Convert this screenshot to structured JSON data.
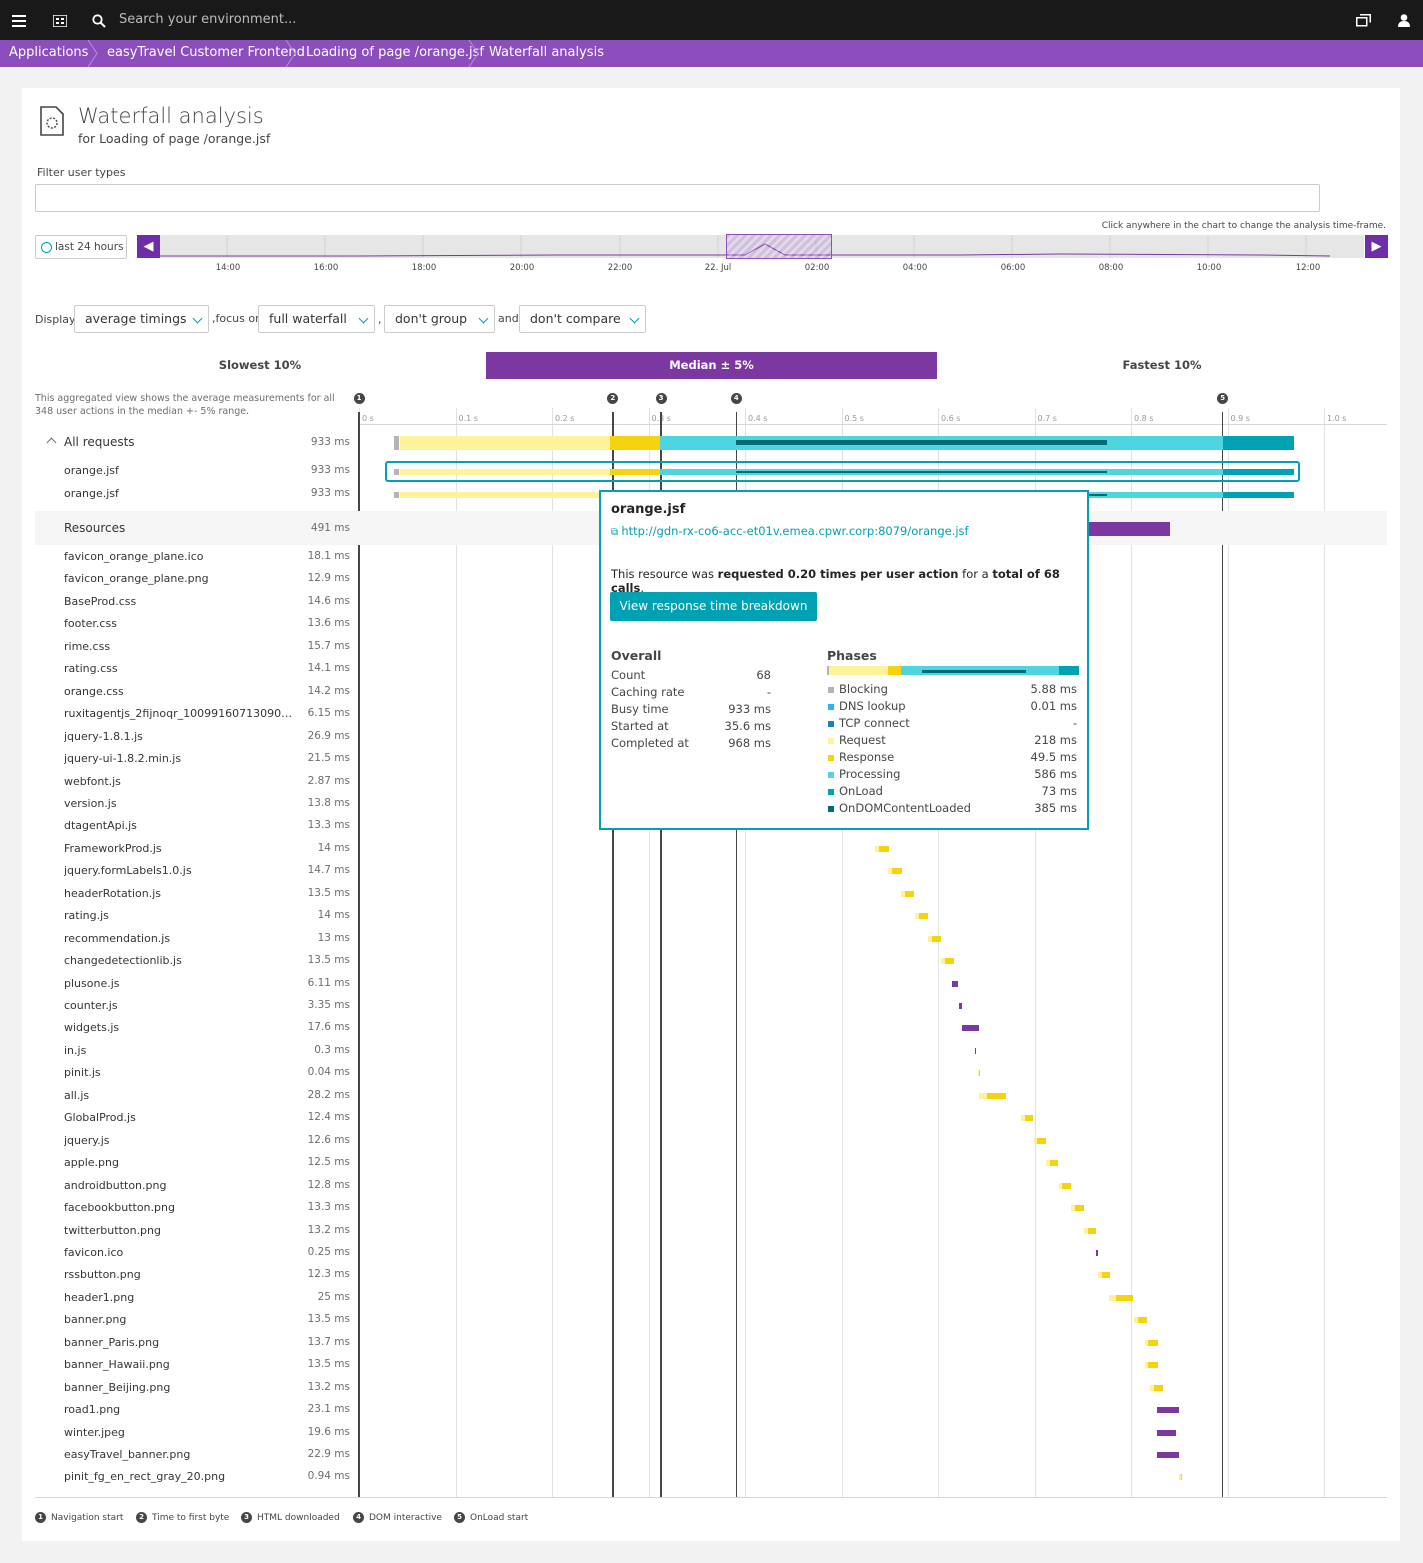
{
  "topbar": {
    "search_placeholder": "Search your environment..."
  },
  "breadcrumb": [
    "Applications",
    "easyTravel Customer Frontend",
    "Loading of page /orange.jsf",
    "Waterfall analysis"
  ],
  "header": {
    "title": "Waterfall analysis",
    "subtitle": "for Loading of page /orange.jsf"
  },
  "filter": {
    "label": "Filter user types",
    "value": ""
  },
  "timeframe": {
    "hint": "Click anywhere in the chart to change the analysis time-frame.",
    "button": "last 24 hours",
    "ticks": [
      "14:00",
      "16:00",
      "18:00",
      "20:00",
      "22:00",
      "22. Jul",
      "02:00",
      "04:00",
      "06:00",
      "08:00",
      "10:00",
      "12:00"
    ]
  },
  "controls": {
    "display_label": "Display",
    "display_value": "average timings",
    "focus_label": ",focus on",
    "focus_value": "full waterfall",
    "comma": ",",
    "group_value": "don't group",
    "and_label": "and",
    "compare_value": "don't compare"
  },
  "segments": {
    "slowest": "Slowest 10%",
    "median": "Median ± 5%",
    "fastest": "Fastest 10%"
  },
  "agg_note": "This aggregated view shows the average measurements for all 348 user actions in the median +- 5% range.",
  "axis": [
    "0 s",
    "0.1 s",
    "0.2 s",
    "0.3 s",
    "0.4 s",
    "0.5 s",
    "0.6 s",
    "0.7 s",
    "0.8 s",
    "0.9 s",
    "1.0 s"
  ],
  "markers": [
    {
      "num": "1",
      "label": "Navigation start",
      "t": 0.0
    },
    {
      "num": "2",
      "label": "Time to first byte",
      "t": 0.263
    },
    {
      "num": "3",
      "label": "HTML downloaded",
      "t": 0.313
    },
    {
      "num": "4",
      "label": "DOM interactive",
      "t": 0.391
    },
    {
      "num": "5",
      "label": "OnLoad start",
      "t": 0.895
    }
  ],
  "requests": {
    "group_label": "All requests",
    "group_time": "933 ms",
    "rows": [
      {
        "name": "orange.jsf",
        "time": "933 ms"
      },
      {
        "name": "orange.jsf",
        "time": "933 ms"
      }
    ]
  },
  "resources": {
    "group_label": "Resources",
    "group_time": "491 ms",
    "rows": [
      {
        "name": "favicon_orange_plane.ico",
        "time": "18.1 ms",
        "start": 0.52,
        "type": "y"
      },
      {
        "name": "favicon_orange_plane.png",
        "time": "12.9 ms",
        "start": 0.53,
        "type": "y"
      },
      {
        "name": "BaseProd.css",
        "time": "14.6 ms",
        "start": 0.54,
        "type": "y"
      },
      {
        "name": "footer.css",
        "time": "13.6 ms",
        "start": 0.55,
        "type": "y"
      },
      {
        "name": "rime.css",
        "time": "15.7 ms",
        "start": 0.56,
        "type": "y"
      },
      {
        "name": "rating.css",
        "time": "14.1 ms",
        "start": 0.57,
        "type": "y"
      },
      {
        "name": "orange.css",
        "time": "14.2 ms",
        "start": 0.575,
        "type": "y"
      },
      {
        "name": "ruxitagentjs_2fijnoqr_10099160713090540...",
        "time": "6.15 ms",
        "start": 0.58,
        "type": "y"
      },
      {
        "name": "jquery-1.8.1.js",
        "time": "26.9 ms",
        "start": 0.585,
        "type": "y"
      },
      {
        "name": "jquery-ui-1.8.2.min.js",
        "time": "21.5 ms",
        "start": 0.59,
        "type": "y"
      },
      {
        "name": "webfont.js",
        "time": "2.87 ms",
        "start": 0.595,
        "type": "y"
      },
      {
        "name": "version.js",
        "time": "13.8 ms",
        "start": 0.6,
        "type": "y"
      },
      {
        "name": "dtagentApi.js",
        "time": "13.3 ms",
        "start": 0.5,
        "type": "y"
      },
      {
        "name": "FrameworkProd.js",
        "time": "14 ms",
        "start": 0.535,
        "type": "y"
      },
      {
        "name": "jquery.formLabels1.0.js",
        "time": "14.7 ms",
        "start": 0.548,
        "type": "y"
      },
      {
        "name": "headerRotation.js",
        "time": "13.5 ms",
        "start": 0.562,
        "type": "y"
      },
      {
        "name": "rating.js",
        "time": "14 ms",
        "start": 0.576,
        "type": "y"
      },
      {
        "name": "recommendation.js",
        "time": "13 ms",
        "start": 0.59,
        "type": "y"
      },
      {
        "name": "changedetectionlib.js",
        "time": "13.5 ms",
        "start": 0.603,
        "type": "y"
      },
      {
        "name": "plusone.js",
        "time": "6.11 ms",
        "start": 0.615,
        "type": "p"
      },
      {
        "name": "counter.js",
        "time": "3.35 ms",
        "start": 0.622,
        "type": "p"
      },
      {
        "name": "widgets.js",
        "time": "17.6 ms",
        "start": 0.625,
        "type": "p"
      },
      {
        "name": "in.js",
        "time": "0.3 ms",
        "start": 0.638,
        "type": "p"
      },
      {
        "name": "pinit.js",
        "time": "0.04 ms",
        "start": 0.641,
        "type": "y"
      },
      {
        "name": "all.js",
        "time": "28.2 ms",
        "start": 0.642,
        "type": "y"
      },
      {
        "name": "GlobalProd.js",
        "time": "12.4 ms",
        "start": 0.686,
        "type": "y"
      },
      {
        "name": "jquery.js",
        "time": "12.6 ms",
        "start": 0.699,
        "type": "y"
      },
      {
        "name": "apple.png",
        "time": "12.5 ms",
        "start": 0.712,
        "type": "y"
      },
      {
        "name": "androidbutton.png",
        "time": "12.8 ms",
        "start": 0.725,
        "type": "y"
      },
      {
        "name": "facebookbutton.png",
        "time": "13.3 ms",
        "start": 0.738,
        "type": "y"
      },
      {
        "name": "twitterbutton.png",
        "time": "13.2 ms",
        "start": 0.751,
        "type": "y"
      },
      {
        "name": "favicon.ico",
        "time": "0.25 ms",
        "start": 0.764,
        "type": "p"
      },
      {
        "name": "rssbutton.png",
        "time": "12.3 ms",
        "start": 0.766,
        "type": "y"
      },
      {
        "name": "header1.png",
        "time": "25 ms",
        "start": 0.777,
        "type": "y"
      },
      {
        "name": "banner.png",
        "time": "13.5 ms",
        "start": 0.803,
        "type": "y"
      },
      {
        "name": "banner_Paris.png",
        "time": "13.7 ms",
        "start": 0.814,
        "type": "y"
      },
      {
        "name": "banner_Hawaii.png",
        "time": "13.5 ms",
        "start": 0.814,
        "type": "y"
      },
      {
        "name": "banner_Beijing.png",
        "time": "13.2 ms",
        "start": 0.82,
        "type": "y"
      },
      {
        "name": "road1.png",
        "time": "23.1 ms",
        "start": 0.827,
        "type": "p"
      },
      {
        "name": "winter.jpeg",
        "time": "19.6 ms",
        "start": 0.827,
        "type": "p"
      },
      {
        "name": "easyTravel_banner.png",
        "time": "22.9 ms",
        "start": 0.827,
        "type": "p"
      },
      {
        "name": "pinit_fg_en_rect_gray_20.png",
        "time": "0.94 ms",
        "start": 0.85,
        "type": "y"
      }
    ]
  },
  "tooltip": {
    "title": "orange.jsf",
    "link": "http://gdn-rx-co6-acc-et01v.emea.cpwr.corp:8079/orange.jsf",
    "sentence": [
      {
        "t": "This resource was ",
        "b": false
      },
      {
        "t": "requested 0.20 times per user action",
        "b": true
      },
      {
        "t": " for a ",
        "b": false
      },
      {
        "t": "total of 68 calls",
        "b": true
      },
      {
        "t": ".",
        "b": false
      }
    ],
    "button": "View response time breakdown",
    "overall_title": "Overall",
    "overall": [
      {
        "k": "Count",
        "v": "68"
      },
      {
        "k": "Caching rate",
        "v": "-"
      },
      {
        "k": "Busy time",
        "v": "933 ms"
      },
      {
        "k": "Started at",
        "v": "35.6 ms"
      },
      {
        "k": "Completed at",
        "v": "968 ms"
      }
    ],
    "phases_title": "Phases",
    "phases": [
      {
        "k": "Blocking",
        "v": "5.88 ms",
        "color": "#b4b4b4"
      },
      {
        "k": "DNS lookup",
        "v": "0.01 ms",
        "color": "#2ab6f4"
      },
      {
        "k": "TCP connect",
        "v": "-",
        "color": "#1a7fc4"
      },
      {
        "k": "Request",
        "v": "218 ms",
        "color": "#fff29a"
      },
      {
        "k": "Response",
        "v": "49.5 ms",
        "color": "#f5d30f"
      },
      {
        "k": "Processing",
        "v": "586 ms",
        "color": "#4fd5e0"
      },
      {
        "k": "OnLoad",
        "v": "73 ms",
        "color": "#00a1b2"
      },
      {
        "k": "OnDOMContentLoaded",
        "v": "385 ms",
        "color": "#006b75"
      }
    ]
  },
  "colors": {
    "brand": "#8c4ebd",
    "median": "#7c38a1",
    "accent": "#00a1b2",
    "request": "#fff29a",
    "response": "#f5d30f",
    "processing": "#4fd5e0",
    "onload": "#00a1b2",
    "domcontent": "#006b75",
    "blocking": "#b4b4b4",
    "purple_bar": "#7c38a1"
  }
}
